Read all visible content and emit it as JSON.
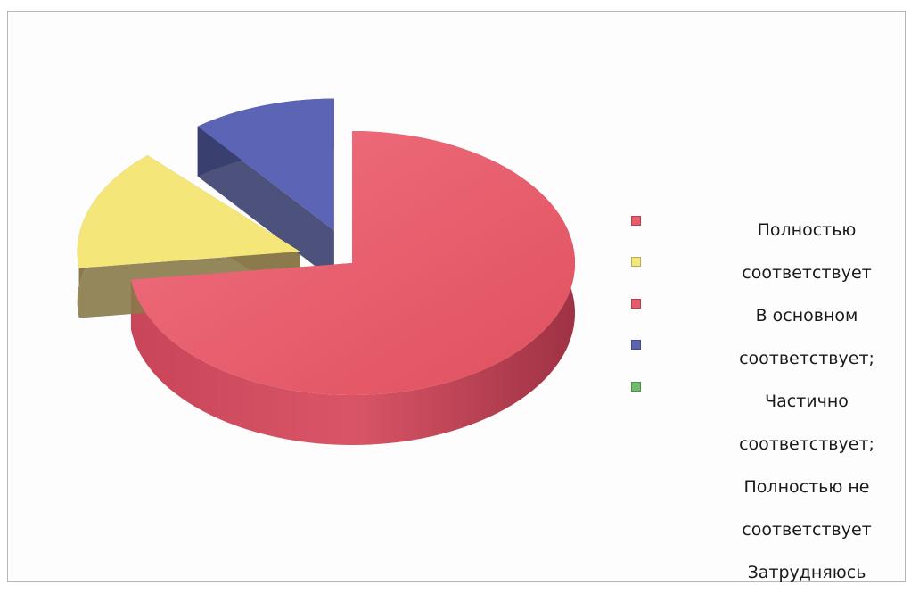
{
  "chart_data": {
    "type": "pie",
    "style": "3d-exploded",
    "categories": [
      "Полностью соответствует",
      "В основном соответствует;",
      "Частично соответствует;",
      "Полностью не соответствует",
      "Затрудняюсь"
    ],
    "values": [
      73,
      15,
      1.5,
      10.5,
      0
    ],
    "colors": [
      "#e85a6a",
      "#f5e67a",
      "#e85a6a",
      "#5b64b5",
      "#6dbd6d"
    ],
    "legend_placement": "right",
    "legend_text": "Полностью\nсоответствует\nВ основном\nсоответствует;\nЧастично\nсоответствует;\nПолностью не\nсоответствует\nЗатрудняюсь"
  }
}
